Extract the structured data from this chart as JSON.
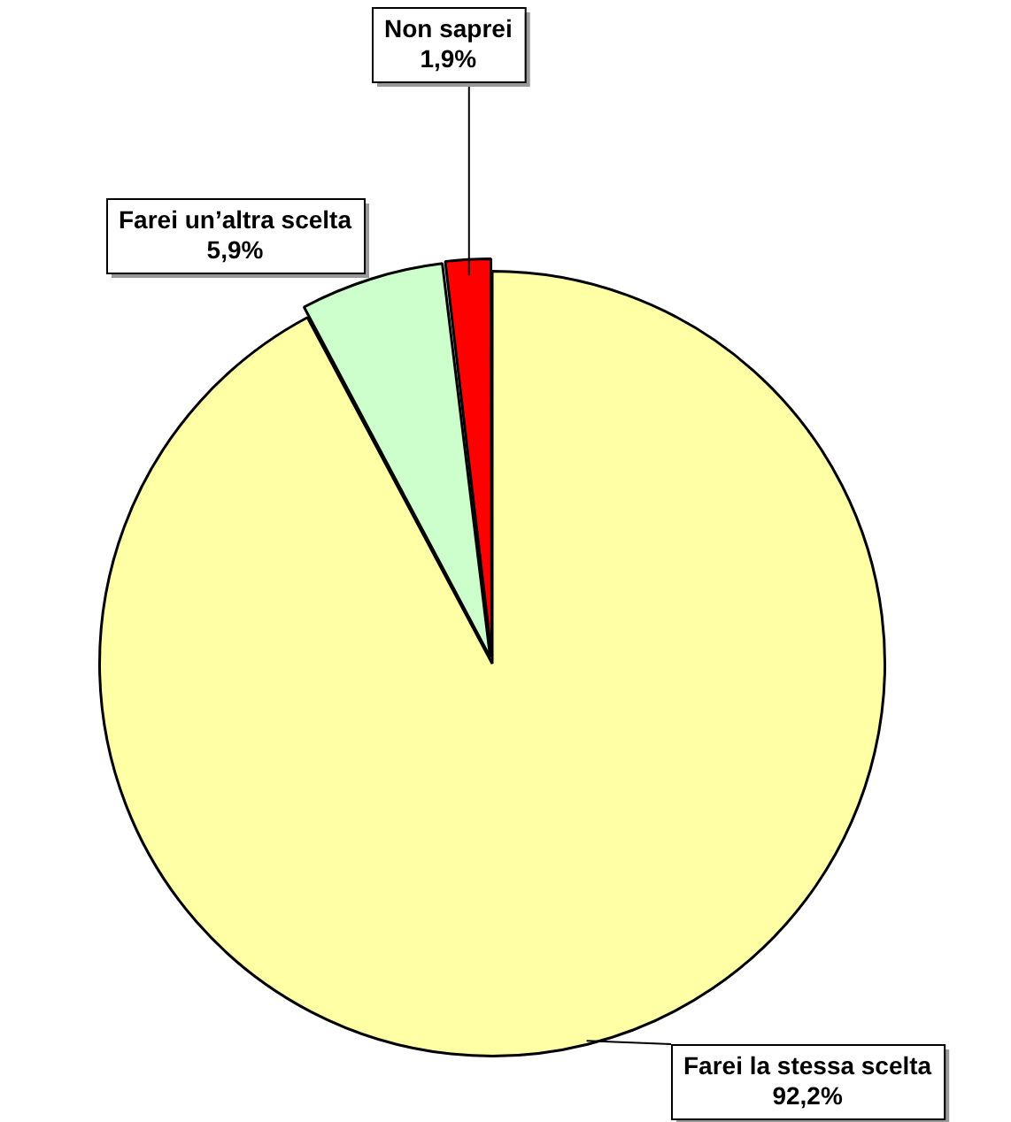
{
  "chart_data": {
    "type": "pie",
    "categories": [
      "Farei la stessa scelta",
      "Farei un’altra scelta",
      "Non saprei"
    ],
    "values": [
      92.2,
      5.9,
      1.9
    ],
    "value_labels": [
      "92,2%",
      "5,9%",
      "1,9%"
    ],
    "colors": [
      "#ffffa6",
      "#ccffcc",
      "#ff0000"
    ],
    "legend": false
  }
}
